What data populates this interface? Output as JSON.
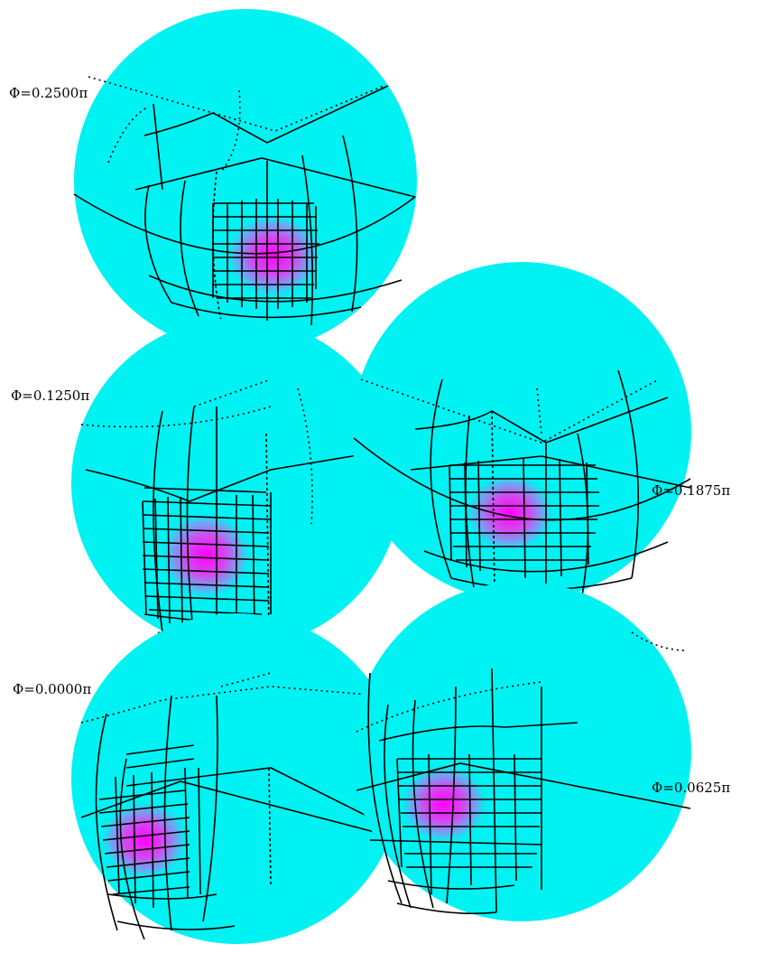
{
  "figure": {
    "sphere_color": "#00f2f2",
    "hotspot_color": "#ff00ff",
    "grid_color": "#000000",
    "spheres": [
      {
        "id": "phi-0-2500",
        "label": "Φ=0.2500π"
      },
      {
        "id": "phi-0-1875",
        "label": "Φ=0.1875π"
      },
      {
        "id": "phi-0-1250",
        "label": "Φ=0.1250π"
      },
      {
        "id": "phi-0-0625",
        "label": "Φ=0.0625π"
      },
      {
        "id": "phi-0-0000",
        "label": "Φ=0.0000π"
      }
    ]
  }
}
